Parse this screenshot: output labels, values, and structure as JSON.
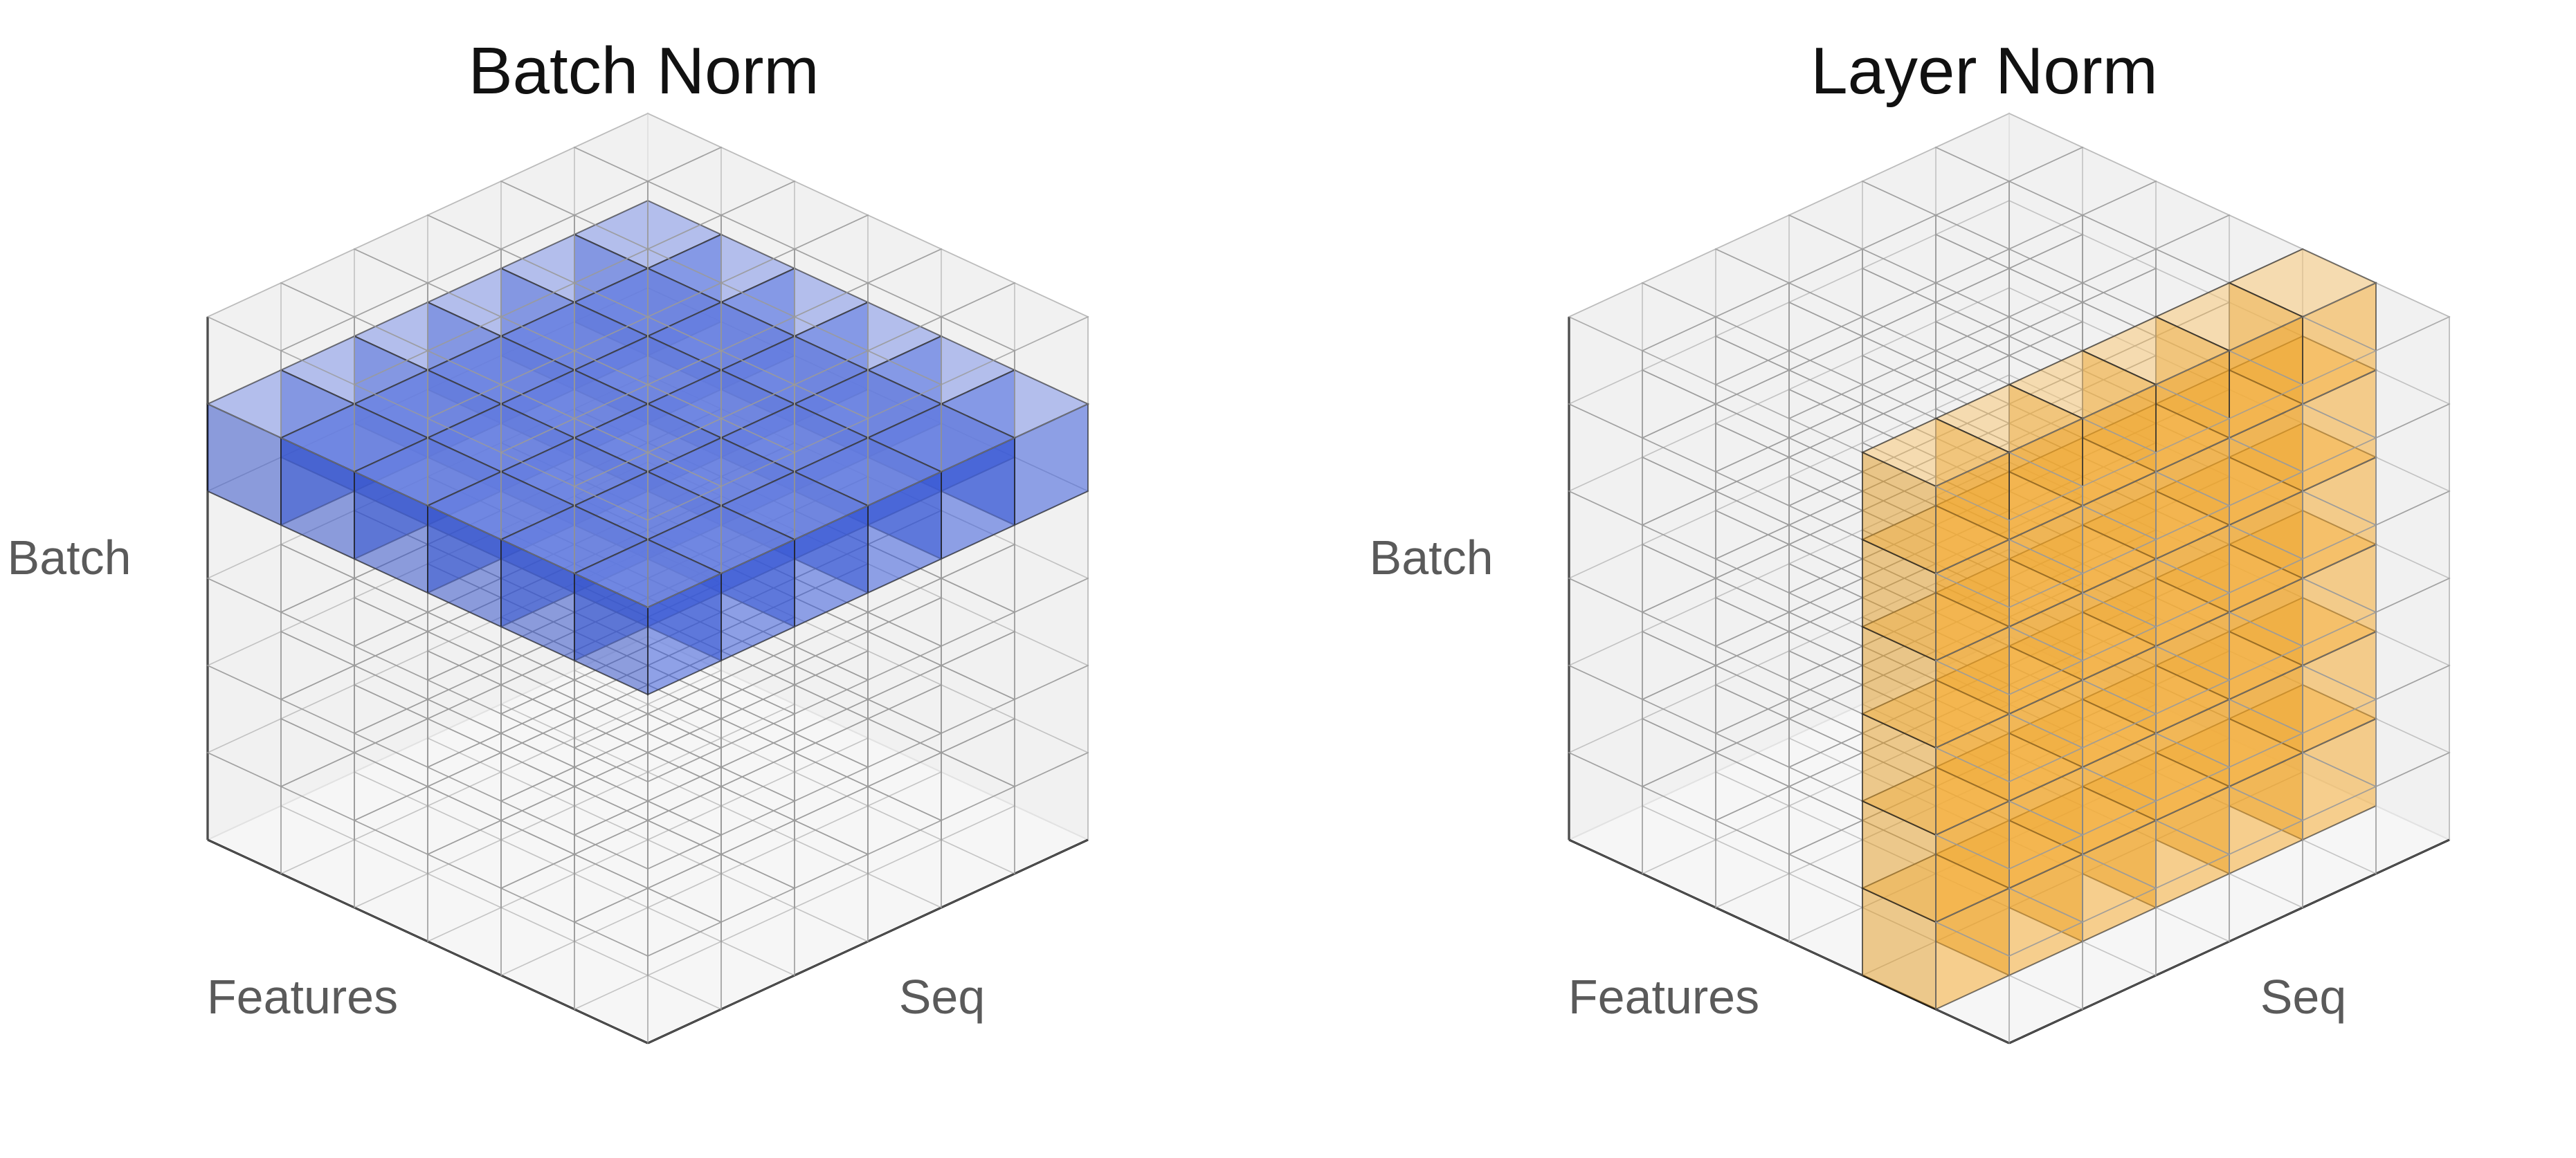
{
  "panels": [
    {
      "title": "Batch Norm",
      "axes": {
        "vertical": "Batch",
        "left": "Features",
        "right": "Seq"
      },
      "highlight": {
        "slice": "batch-layer",
        "layer_index_from_top": 1,
        "color": "#3b5bdb"
      }
    },
    {
      "title": "Layer Norm",
      "axes": {
        "vertical": "Batch",
        "left": "Features",
        "right": "Seq"
      },
      "highlight": {
        "slice": "feature-plane",
        "feature_index": 1,
        "color": "#f5a623"
      }
    }
  ],
  "grid_size": {
    "features": 6,
    "seq": 6,
    "batch": 6
  },
  "colors": {
    "grid": "#9a9a9a",
    "pane_wall": "#f1f1f1",
    "pane_floor": "#f6f6f6",
    "axis_line": "#111111"
  }
}
